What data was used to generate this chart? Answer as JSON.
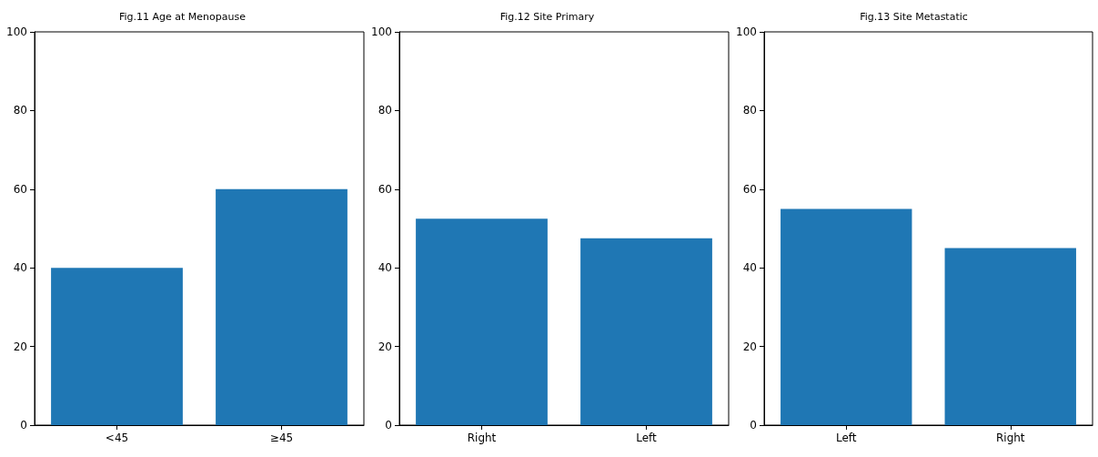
{
  "chart_data": [
    {
      "type": "bar",
      "title": "Fig.11 Age at Menopause",
      "categories": [
        "<45",
        "≥45"
      ],
      "values": [
        40,
        60
      ],
      "color": "#1f77b4",
      "ylim": [
        0,
        100
      ],
      "yticks": [
        0,
        20,
        40,
        60,
        80,
        100
      ],
      "grid": false
    },
    {
      "type": "bar",
      "title": "Fig.12 Site Primary",
      "categories": [
        "Right",
        "Left"
      ],
      "values": [
        52.5,
        47.5
      ],
      "color": "#1f77b4",
      "ylim": [
        0,
        100
      ],
      "yticks": [
        0,
        20,
        40,
        60,
        80,
        100
      ],
      "grid": false
    },
    {
      "type": "bar",
      "title": "Fig.13 Site Metastatic",
      "categories": [
        "Left",
        "Right"
      ],
      "values": [
        55,
        45
      ],
      "color": "#1f77b4",
      "ylim": [
        0,
        100
      ],
      "yticks": [
        0,
        20,
        40,
        60,
        80,
        100
      ],
      "grid": false
    }
  ]
}
